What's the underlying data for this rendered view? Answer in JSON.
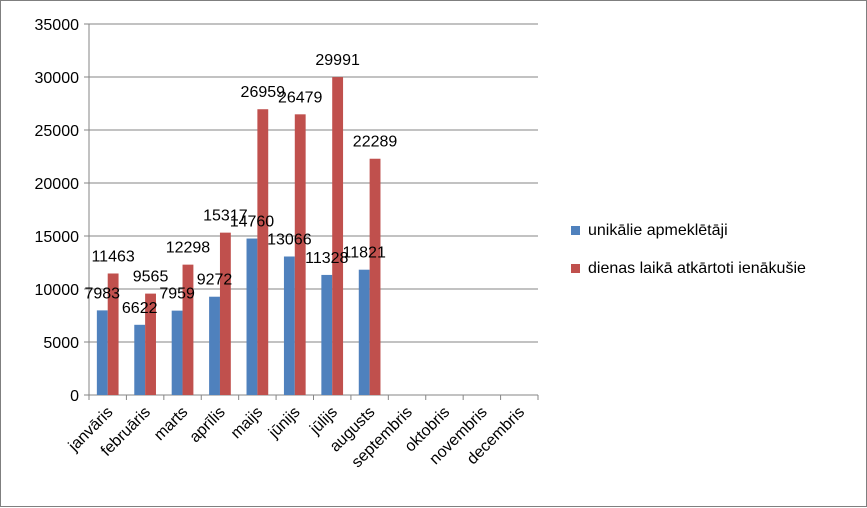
{
  "chart_data": {
    "type": "bar",
    "title": "",
    "xlabel": "",
    "ylabel": "",
    "categories": [
      "janvāris",
      "februāris",
      "marts",
      "aprīlis",
      "maijs",
      "jūnijs",
      "jūlijs",
      "augusts",
      "septembris",
      "oktobris",
      "novembris",
      "decembris"
    ],
    "series": [
      {
        "name": "unikālie apmeklētāji",
        "color": "#4f81bd",
        "values": [
          7983,
          6622,
          7959,
          9272,
          14760,
          13066,
          11328,
          11821,
          null,
          null,
          null,
          null
        ]
      },
      {
        "name": "dienas laikā atkārtoti ienākušie",
        "color": "#c0504d",
        "values": [
          11463,
          9565,
          12298,
          15317,
          26959,
          26479,
          29991,
          22289,
          null,
          null,
          null,
          null
        ]
      }
    ],
    "ylim": [
      0,
      35000
    ],
    "yticks": [
      0,
      5000,
      10000,
      15000,
      20000,
      25000,
      30000,
      35000
    ],
    "grid": true,
    "legend_position": "right"
  }
}
